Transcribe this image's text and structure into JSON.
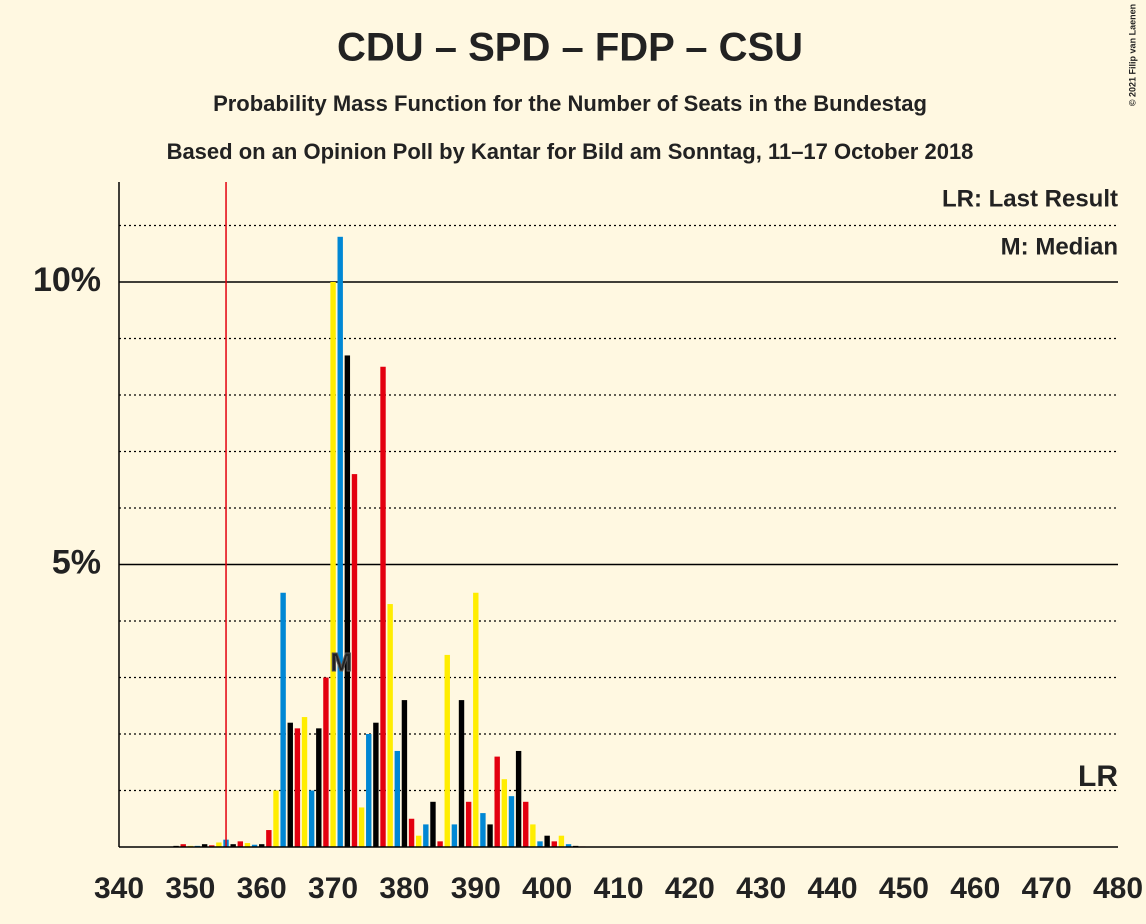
{
  "chart_data": {
    "type": "bar",
    "title": "CDU – SPD – FDP – CSU",
    "subtitle": "Probability Mass Function for the Number of Seats in the Bundestag",
    "subtitle2": "Based on an Opinion Poll by Kantar for Bild am Sonntag, 11–17 October 2018",
    "copyright": "© 2021 Filip van Laenen",
    "legend": [
      "LR: Last Result",
      "M: Median"
    ],
    "last_result": 355,
    "lr_label": "LR",
    "median": 372,
    "median_label": "M",
    "bar_colors": [
      "#000000",
      "#e3000f",
      "#ffed00",
      "#0087d4"
    ],
    "x": [
      340,
      341,
      342,
      343,
      344,
      345,
      346,
      347,
      348,
      349,
      350,
      351,
      352,
      353,
      354,
      355,
      356,
      357,
      358,
      359,
      360,
      361,
      362,
      363,
      364,
      365,
      366,
      367,
      368,
      369,
      370,
      371,
      372,
      373,
      374,
      375,
      376,
      377,
      378,
      379,
      380,
      381,
      382,
      383,
      384,
      385,
      386,
      387,
      388,
      389,
      390,
      391,
      392,
      393,
      394,
      395,
      396,
      397,
      398,
      399,
      400,
      401,
      402,
      403,
      404,
      405,
      406,
      407,
      408,
      409,
      410,
      411,
      412,
      413,
      414,
      415,
      416,
      417,
      418,
      419,
      420,
      421,
      422,
      423,
      424,
      425,
      426,
      427,
      428,
      429,
      430,
      431,
      432,
      433,
      434,
      435,
      436,
      437,
      438,
      439,
      440,
      441,
      442,
      443,
      444,
      445,
      446,
      447,
      448,
      449,
      450,
      451,
      452,
      453,
      454,
      455,
      456,
      457,
      458,
      459,
      460,
      461,
      462,
      463,
      464,
      465,
      466,
      467,
      468,
      469,
      470,
      471,
      472,
      473,
      474,
      475,
      476,
      477,
      478,
      479,
      480
    ],
    "values": [
      0,
      0,
      0,
      0,
      0,
      0,
      0,
      0,
      0.02,
      0.05,
      0.02,
      0.02,
      0.05,
      0.03,
      0.08,
      0.13,
      0.05,
      0.1,
      0.07,
      0.04,
      0.05,
      0.3,
      1.0,
      4.5,
      2.2,
      2.1,
      2.3,
      1.0,
      2.1,
      3.0,
      10.0,
      10.8,
      8.7,
      6.6,
      0.7,
      2.0,
      2.2,
      8.5,
      4.3,
      1.7,
      2.6,
      0.5,
      0.2,
      0.4,
      0.8,
      0.1,
      3.4,
      0.4,
      2.6,
      0.8,
      4.5,
      0.6,
      0.4,
      1.6,
      1.2,
      0.9,
      1.7,
      0.8,
      0.4,
      0.1,
      0.2,
      0.1,
      0.2,
      0.05,
      0.02,
      0.01,
      0,
      0,
      0,
      0,
      0,
      0,
      0,
      0,
      0,
      0,
      0,
      0,
      0,
      0,
      0,
      0,
      0,
      0,
      0,
      0,
      0,
      0,
      0,
      0,
      0,
      0,
      0,
      0,
      0,
      0,
      0,
      0,
      0,
      0,
      0,
      0,
      0,
      0,
      0,
      0,
      0,
      0,
      0,
      0,
      0,
      0,
      0,
      0,
      0,
      0,
      0,
      0,
      0,
      0,
      0,
      0,
      0,
      0,
      0,
      0,
      0,
      0,
      0,
      0,
      0,
      0,
      0,
      0,
      0,
      0,
      0,
      0,
      0,
      0,
      0
    ],
    "xlim": [
      340,
      480
    ],
    "xticks": [
      340,
      350,
      360,
      370,
      380,
      390,
      400,
      410,
      420,
      430,
      440,
      450,
      460,
      470,
      480
    ],
    "ylim": [
      0,
      11.77
    ],
    "yticks": [
      {
        "value": 5,
        "label": "5%"
      },
      {
        "value": 10,
        "label": "10%"
      }
    ],
    "minor_yticks": [
      1,
      2,
      3,
      4,
      6,
      7,
      8,
      9,
      11
    ]
  }
}
